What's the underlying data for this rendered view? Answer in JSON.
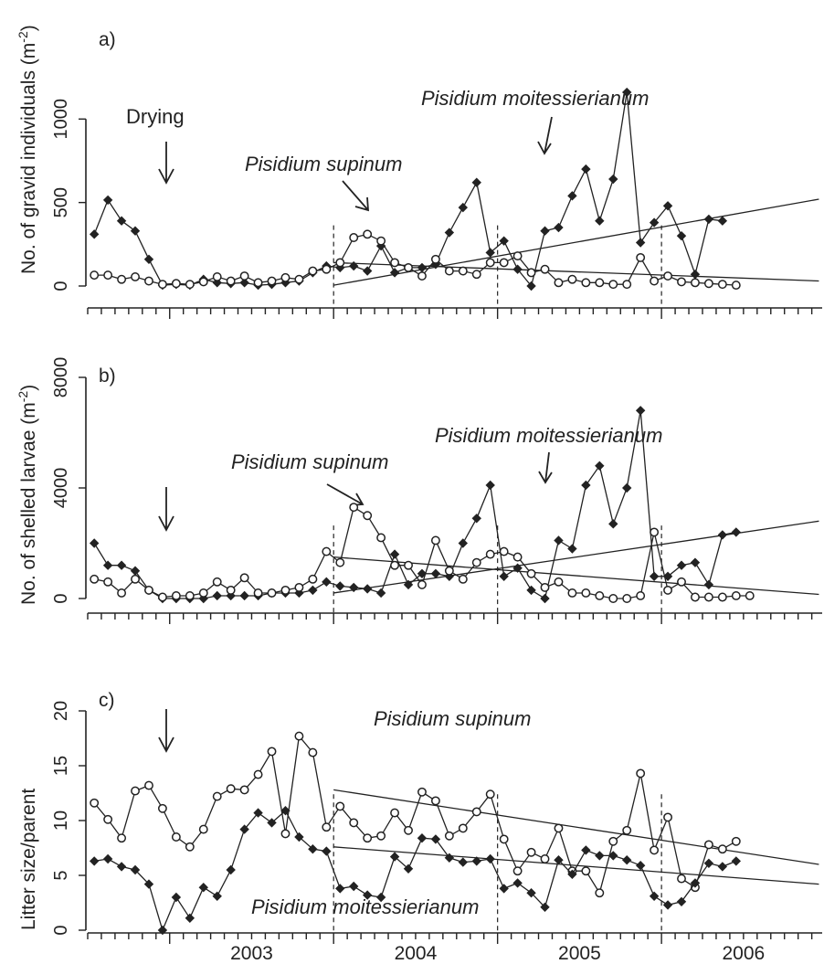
{
  "chart_data": [
    {
      "panel": "a)",
      "type": "line",
      "ylabel": "No. of gravid individuals (m",
      "ylabel_sup": "-2",
      "ylabel_end": ")",
      "ylim": [
        0,
        1100
      ],
      "yticks": [
        0,
        500,
        1000
      ],
      "x_start": 2002.54,
      "x_step": 0.0833,
      "series": [
        {
          "name": "Pisidium moitessierianum",
          "marker": "filled-diamond",
          "values": [
            310,
            515,
            390,
            330,
            160,
            5,
            10,
            5,
            40,
            20,
            15,
            20,
            5,
            10,
            20,
            30,
            80,
            120,
            110,
            120,
            90,
            240,
            80,
            110,
            110,
            130,
            320,
            470,
            620,
            200,
            270,
            100,
            0,
            330,
            350,
            540,
            700,
            390,
            640,
            1160,
            260,
            380,
            480,
            300,
            70,
            400,
            390
          ]
        },
        {
          "name": "Pisidium supinum",
          "marker": "open-circle",
          "values": [
            65,
            65,
            40,
            55,
            30,
            10,
            15,
            10,
            25,
            55,
            30,
            60,
            20,
            30,
            50,
            40,
            90,
            100,
            140,
            290,
            310,
            270,
            140,
            110,
            60,
            160,
            90,
            90,
            70,
            140,
            140,
            180,
            80,
            100,
            20,
            40,
            20,
            20,
            10,
            10,
            170,
            30,
            60,
            25,
            20,
            15,
            10,
            5
          ]
        }
      ],
      "trends": [
        {
          "x": [
            2004.0,
            2006.96
          ],
          "y": [
            5,
            520
          ]
        },
        {
          "x": [
            2004.0,
            2006.96
          ],
          "y": [
            140,
            30
          ]
        }
      ],
      "annotations": [
        {
          "text": "Drying",
          "italic": false
        },
        {
          "text": "Pisidium supinum",
          "italic": true
        },
        {
          "text": "Pisidium moitessierianum",
          "italic": true
        }
      ]
    },
    {
      "panel": "b)",
      "type": "line",
      "ylabel": "No. of shelled larvae (m",
      "ylabel_sup": "-2",
      "ylabel_end": ")",
      "ylim": [
        0,
        8000
      ],
      "yticks": [
        0,
        4000,
        8000
      ],
      "x_start": 2002.54,
      "x_step": 0.0833,
      "series": [
        {
          "name": "Pisidium moitessierianum",
          "marker": "filled-diamond",
          "values": [
            2000,
            1200,
            1200,
            1000,
            300,
            0,
            0,
            0,
            0,
            100,
            100,
            100,
            100,
            200,
            200,
            200,
            300,
            600,
            450,
            400,
            350,
            200,
            1600,
            500,
            900,
            900,
            800,
            2000,
            2900,
            4100,
            800,
            1100,
            300,
            0,
            2100,
            1800,
            4100,
            4800,
            2700,
            4000,
            6800,
            800,
            800,
            1200,
            1300,
            500,
            2300,
            2400
          ]
        },
        {
          "name": "Pisidium supinum",
          "marker": "open-circle",
          "values": [
            700,
            600,
            200,
            700,
            300,
            50,
            100,
            100,
            200,
            600,
            300,
            750,
            200,
            200,
            300,
            400,
            700,
            1700,
            1300,
            3300,
            3000,
            2200,
            1200,
            1200,
            500,
            2100,
            1000,
            700,
            1300,
            1600,
            1700,
            1500,
            900,
            400,
            600,
            200,
            200,
            100,
            0,
            0,
            100,
            2400,
            300,
            600,
            50,
            50,
            50,
            100,
            100
          ]
        }
      ],
      "trends": [
        {
          "x": [
            2004.0,
            2006.96
          ],
          "y": [
            200,
            2800
          ]
        },
        {
          "x": [
            2004.0,
            2006.96
          ],
          "y": [
            1500,
            150
          ]
        }
      ],
      "annotations": [
        {
          "text": "Pisidium supinum",
          "italic": true
        },
        {
          "text": "Pisidium moitessierianum",
          "italic": true
        }
      ]
    },
    {
      "panel": "c)",
      "type": "line",
      "ylabel": "Litter size/parent",
      "ylim": [
        0,
        20
      ],
      "yticks": [
        0,
        5,
        10,
        15,
        20
      ],
      "x_start": 2002.54,
      "x_step": 0.0833,
      "xticklabels": [
        "2003",
        "2004",
        "2005",
        "2006"
      ],
      "series": [
        {
          "name": "Pisidium supinum",
          "marker": "open-circle",
          "values": [
            11.6,
            10.1,
            8.4,
            12.7,
            13.2,
            11.1,
            8.5,
            7.6,
            9.2,
            12.2,
            12.9,
            12.8,
            14.2,
            16.3,
            8.8,
            17.7,
            16.2,
            9.4,
            11.3,
            9.8,
            8.4,
            8.6,
            10.7,
            9.1,
            12.6,
            11.8,
            8.6,
            9.3,
            10.8,
            12.4,
            8.3,
            5.4,
            7.1,
            6.5,
            9.3,
            5.4,
            5.4,
            3.4,
            8.1,
            9.1,
            14.3,
            7.3,
            10.3,
            4.7,
            3.9,
            7.8,
            7.4,
            8.1
          ]
        },
        {
          "name": "Pisidium moitessierianum",
          "marker": "filled-diamond",
          "values": [
            6.3,
            6.5,
            5.8,
            5.5,
            4.2,
            0.0,
            3.0,
            1.1,
            3.9,
            3.1,
            5.5,
            9.2,
            10.7,
            9.8,
            10.9,
            8.5,
            7.4,
            7.2,
            3.8,
            4.0,
            3.2,
            3.0,
            6.7,
            5.6,
            8.4,
            8.3,
            6.6,
            6.2,
            6.3,
            6.5,
            3.8,
            4.3,
            3.4,
            2.1,
            6.4,
            5.1,
            7.3,
            6.8,
            6.8,
            6.4,
            5.9,
            3.1,
            2.3,
            2.6,
            4.3,
            6.1,
            5.8,
            6.3
          ]
        }
      ],
      "trends": [
        {
          "x": [
            2004.0,
            2006.96
          ],
          "y": [
            12.8,
            6.0
          ]
        },
        {
          "x": [
            2004.0,
            2006.96
          ],
          "y": [
            7.6,
            4.2
          ]
        }
      ],
      "annotations": [
        {
          "text": "Pisidium supinum",
          "italic": true
        },
        {
          "text": "Pisidium moitessierianum",
          "italic": true
        }
      ]
    }
  ]
}
